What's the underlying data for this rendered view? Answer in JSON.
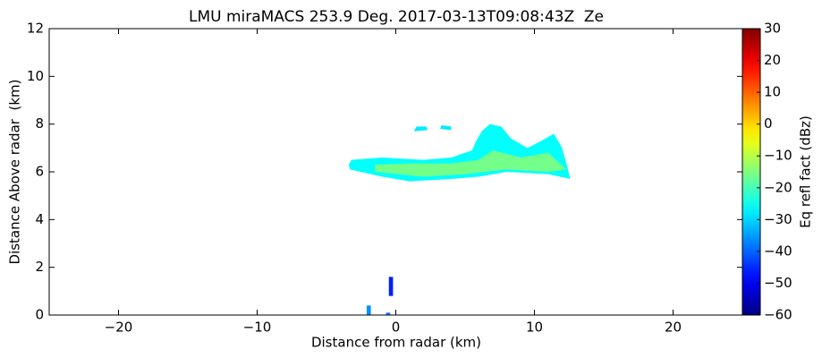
{
  "chart_data": {
    "type": "rhi",
    "title": "LMU miraMACS 253.9 Deg. 2017-03-13T09:08:43Z  Ze",
    "xlabel": "Distance from radar (km)",
    "ylabel": "Distance Above radar  (km)",
    "colorbar_label": "Eq refl fact (dBz)",
    "colormap": "jet",
    "xlim": [
      -25,
      25
    ],
    "ylim": [
      0,
      12
    ],
    "clim": [
      -60,
      30
    ],
    "xticks": [
      {
        "value": -20,
        "label": "−20"
      },
      {
        "value": -10,
        "label": "−10"
      },
      0,
      10,
      20
    ],
    "yticks": [
      0,
      2,
      4,
      6,
      8,
      10,
      12
    ],
    "cticks": [
      {
        "value": -60,
        "label": "−60"
      },
      {
        "value": -50,
        "label": "−50"
      },
      {
        "value": -40,
        "label": "−40"
      },
      {
        "value": -30,
        "label": "−30"
      },
      {
        "value": -20,
        "label": "−20"
      },
      {
        "value": -10,
        "label": "−10"
      },
      0,
      10,
      20,
      30
    ],
    "regions": [
      {
        "value": -26,
        "points": [
          [
            -3.4,
            6.3
          ],
          [
            -3.2,
            6.5
          ],
          [
            -1,
            6.6
          ],
          [
            2,
            6.5
          ],
          [
            4,
            6.6
          ],
          [
            5.5,
            6.9
          ],
          [
            5.8,
            7.3
          ],
          [
            6.2,
            7.7
          ],
          [
            6.8,
            8.0
          ],
          [
            7.6,
            7.9
          ],
          [
            8.3,
            7.4
          ],
          [
            9.5,
            7.0
          ],
          [
            10.5,
            7.3
          ],
          [
            11.4,
            7.6
          ],
          [
            12.0,
            7.0
          ],
          [
            12.6,
            5.7
          ],
          [
            11,
            5.9
          ],
          [
            8,
            6.0
          ],
          [
            6,
            5.8
          ],
          [
            4,
            5.7
          ],
          [
            1,
            5.6
          ],
          [
            -1,
            5.8
          ],
          [
            -3.3,
            6.1
          ]
        ]
      },
      {
        "value": -16,
        "points": [
          [
            -1.5,
            6.3
          ],
          [
            1,
            6.35
          ],
          [
            4,
            6.35
          ],
          [
            6,
            6.5
          ],
          [
            7,
            6.9
          ],
          [
            9,
            6.6
          ],
          [
            11,
            6.8
          ],
          [
            12.3,
            6.1
          ],
          [
            11,
            6.0
          ],
          [
            8,
            6.1
          ],
          [
            5,
            5.9
          ],
          [
            2,
            5.8
          ],
          [
            -1.5,
            6.0
          ]
        ]
      },
      {
        "value": -28,
        "points": [
          [
            1.3,
            7.7
          ],
          [
            2.3,
            7.75
          ],
          [
            2.2,
            7.9
          ],
          [
            1.5,
            7.9
          ]
        ]
      },
      {
        "value": -28,
        "points": [
          [
            3.2,
            7.8
          ],
          [
            4.0,
            7.75
          ],
          [
            4.0,
            7.9
          ],
          [
            3.3,
            7.95
          ]
        ]
      },
      {
        "value": -46,
        "points": [
          [
            -0.5,
            0.8
          ],
          [
            -0.2,
            0.8
          ],
          [
            -0.2,
            1.6
          ],
          [
            -0.5,
            1.6
          ]
        ]
      },
      {
        "value": -36,
        "points": [
          [
            -2.1,
            0
          ],
          [
            -1.8,
            0
          ],
          [
            -1.8,
            0.4
          ],
          [
            -2.1,
            0.4
          ]
        ]
      },
      {
        "value": -38,
        "points": [
          [
            -0.7,
            0
          ],
          [
            -0.4,
            0
          ],
          [
            -0.4,
            0.1
          ],
          [
            -0.7,
            0.1
          ]
        ]
      }
    ]
  }
}
